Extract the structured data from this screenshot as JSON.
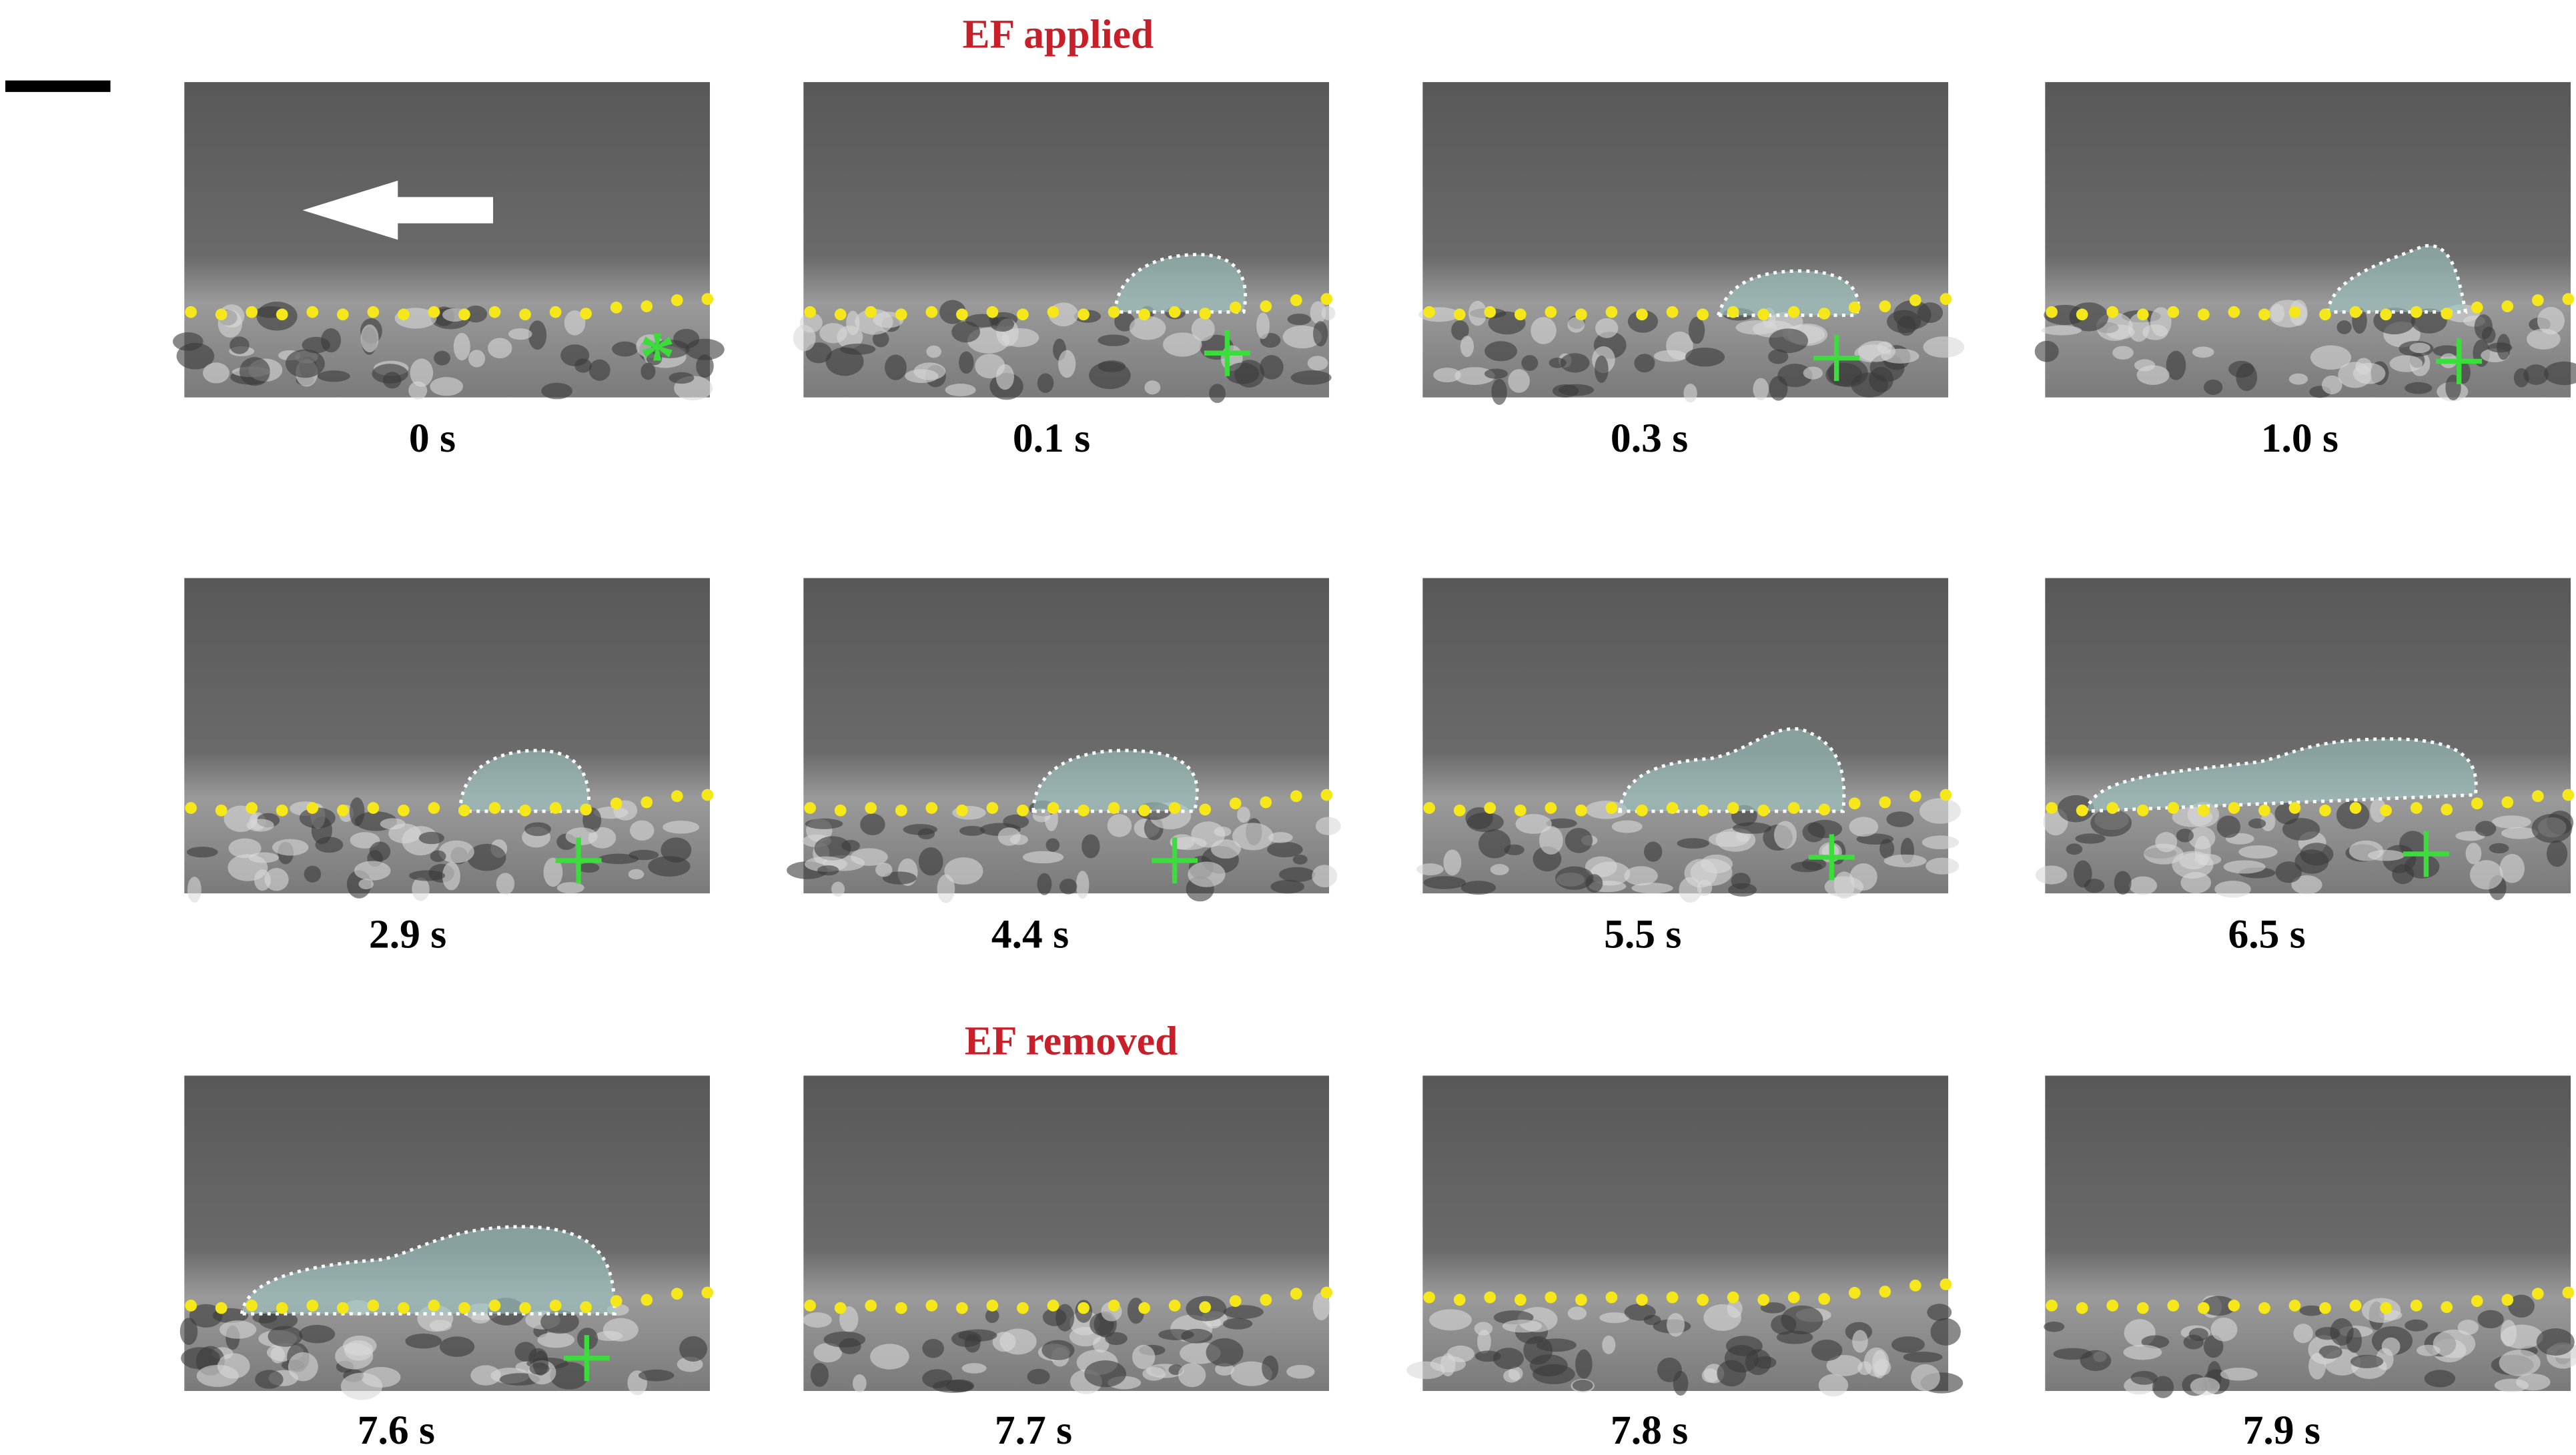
{
  "header": {
    "ef_applied": "EF applied",
    "ef_removed": "EF removed"
  },
  "panels": [
    {
      "time": "0 s"
    },
    {
      "time": "0.1 s"
    },
    {
      "time": "0.3 s"
    },
    {
      "time": "1.0 s"
    },
    {
      "time": "2.9 s"
    },
    {
      "time": "4.4 s"
    },
    {
      "time": "5.5 s"
    },
    {
      "time": "6.5 s"
    },
    {
      "time": "7.6 s"
    },
    {
      "time": "7.7 s"
    },
    {
      "time": "7.8 s"
    },
    {
      "time": "7.9 s"
    }
  ]
}
